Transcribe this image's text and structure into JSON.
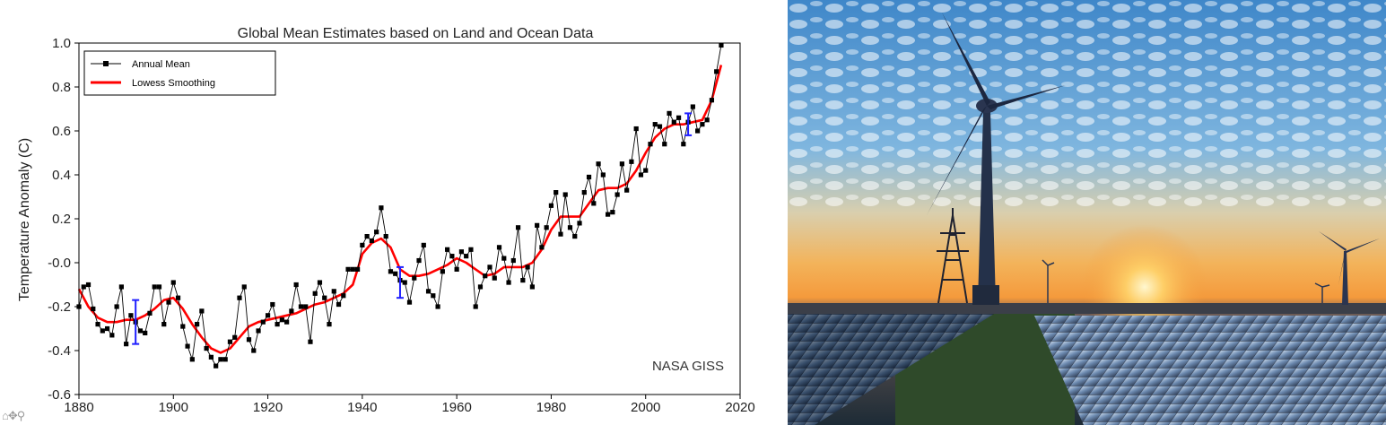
{
  "chart_data": {
    "type": "line",
    "title": "Global Mean Estimates based on Land and Ocean Data",
    "ylabel": "Temperature Anomaly (C)",
    "xlim": [
      1880,
      2020
    ],
    "ylim": [
      -0.6,
      1.0
    ],
    "xticks": [
      1880,
      1900,
      1920,
      1940,
      1960,
      1980,
      2000,
      2020
    ],
    "yticks": [
      {
        "value": 1.0,
        "label": "1.0"
      },
      {
        "value": 0.8,
        "label": "0.8"
      },
      {
        "value": 0.6,
        "label": "0.6"
      },
      {
        "value": 0.4,
        "label": "0.4"
      },
      {
        "value": 0.2,
        "label": "0.2"
      },
      {
        "value": 0.0,
        "label": "-0.0"
      },
      {
        "value": -0.2,
        "label": "-0.2"
      },
      {
        "value": -0.4,
        "label": "-0.4"
      },
      {
        "value": -0.6,
        "label": "-0.6"
      }
    ],
    "legend_position": "top-left",
    "annotation": "NASA GISS",
    "series": [
      {
        "name": "Annual Mean",
        "color": "#000000",
        "marker": "square",
        "x": [
          1880,
          1881,
          1882,
          1883,
          1884,
          1885,
          1886,
          1887,
          1888,
          1889,
          1890,
          1891,
          1892,
          1893,
          1894,
          1895,
          1896,
          1897,
          1898,
          1899,
          1900,
          1901,
          1902,
          1903,
          1904,
          1905,
          1906,
          1907,
          1908,
          1909,
          1910,
          1911,
          1912,
          1913,
          1914,
          1915,
          1916,
          1917,
          1918,
          1919,
          1920,
          1921,
          1922,
          1923,
          1924,
          1925,
          1926,
          1927,
          1928,
          1929,
          1930,
          1931,
          1932,
          1933,
          1934,
          1935,
          1936,
          1937,
          1938,
          1939,
          1940,
          1941,
          1942,
          1943,
          1944,
          1945,
          1946,
          1947,
          1948,
          1949,
          1950,
          1951,
          1952,
          1953,
          1954,
          1955,
          1956,
          1957,
          1958,
          1959,
          1960,
          1961,
          1962,
          1963,
          1964,
          1965,
          1966,
          1967,
          1968,
          1969,
          1970,
          1971,
          1972,
          1973,
          1974,
          1975,
          1976,
          1977,
          1978,
          1979,
          1980,
          1981,
          1982,
          1983,
          1984,
          1985,
          1986,
          1987,
          1988,
          1989,
          1990,
          1991,
          1992,
          1993,
          1994,
          1995,
          1996,
          1997,
          1998,
          1999,
          2000,
          2001,
          2002,
          2003,
          2004,
          2005,
          2006,
          2007,
          2008,
          2009,
          2010,
          2011,
          2012,
          2013,
          2014,
          2015,
          2016
        ],
        "values": [
          -0.2,
          -0.11,
          -0.1,
          -0.21,
          -0.28,
          -0.31,
          -0.3,
          -0.33,
          -0.2,
          -0.11,
          -0.37,
          -0.24,
          -0.27,
          -0.31,
          -0.32,
          -0.23,
          -0.11,
          -0.11,
          -0.28,
          -0.18,
          -0.09,
          -0.16,
          -0.29,
          -0.38,
          -0.44,
          -0.28,
          -0.22,
          -0.39,
          -0.43,
          -0.47,
          -0.44,
          -0.44,
          -0.36,
          -0.34,
          -0.16,
          -0.11,
          -0.35,
          -0.4,
          -0.31,
          -0.27,
          -0.24,
          -0.19,
          -0.28,
          -0.26,
          -0.27,
          -0.22,
          -0.1,
          -0.2,
          -0.2,
          -0.36,
          -0.14,
          -0.09,
          -0.16,
          -0.28,
          -0.13,
          -0.19,
          -0.15,
          -0.03,
          -0.03,
          -0.03,
          0.08,
          0.12,
          0.1,
          0.14,
          0.25,
          0.12,
          -0.04,
          -0.05,
          -0.08,
          -0.09,
          -0.18,
          -0.07,
          0.01,
          0.08,
          -0.13,
          -0.15,
          -0.2,
          -0.04,
          0.06,
          0.03,
          -0.03,
          0.05,
          0.03,
          0.06,
          -0.2,
          -0.11,
          -0.06,
          -0.02,
          -0.07,
          0.07,
          0.02,
          -0.09,
          0.01,
          0.16,
          -0.08,
          -0.02,
          -0.11,
          0.17,
          0.07,
          0.16,
          0.26,
          0.32,
          0.13,
          0.31,
          0.16,
          0.12,
          0.18,
          0.32,
          0.39,
          0.27,
          0.45,
          0.4,
          0.22,
          0.23,
          0.31,
          0.45,
          0.33,
          0.46,
          0.61,
          0.4,
          0.42,
          0.54,
          0.63,
          0.62,
          0.54,
          0.68,
          0.64,
          0.66,
          0.54,
          0.64,
          0.71,
          0.6,
          0.63,
          0.65,
          0.74,
          0.87,
          0.99
        ]
      },
      {
        "name": "Lowess Smoothing",
        "color": "#ff0000",
        "x": [
          1880,
          1882,
          1884,
          1886,
          1888,
          1890,
          1892,
          1894,
          1896,
          1898,
          1900,
          1902,
          1904,
          1906,
          1908,
          1910,
          1912,
          1914,
          1916,
          1918,
          1920,
          1922,
          1924,
          1926,
          1928,
          1930,
          1932,
          1934,
          1936,
          1938,
          1940,
          1942,
          1944,
          1946,
          1948,
          1950,
          1952,
          1954,
          1956,
          1958,
          1960,
          1962,
          1964,
          1966,
          1968,
          1970,
          1972,
          1974,
          1976,
          1978,
          1980,
          1982,
          1984,
          1986,
          1988,
          1990,
          1992,
          1994,
          1996,
          1998,
          2000,
          2002,
          2004,
          2006,
          2008,
          2010,
          2012,
          2014,
          2016
        ],
        "values": [
          -0.12,
          -0.2,
          -0.25,
          -0.27,
          -0.27,
          -0.26,
          -0.26,
          -0.24,
          -0.21,
          -0.17,
          -0.16,
          -0.21,
          -0.28,
          -0.34,
          -0.39,
          -0.41,
          -0.39,
          -0.34,
          -0.29,
          -0.27,
          -0.26,
          -0.25,
          -0.24,
          -0.23,
          -0.21,
          -0.19,
          -0.18,
          -0.16,
          -0.14,
          -0.1,
          0.04,
          0.09,
          0.11,
          0.07,
          -0.03,
          -0.06,
          -0.06,
          -0.05,
          -0.03,
          -0.01,
          0.02,
          0.0,
          -0.03,
          -0.06,
          -0.05,
          -0.02,
          -0.02,
          -0.02,
          0.0,
          0.06,
          0.15,
          0.21,
          0.21,
          0.21,
          0.27,
          0.33,
          0.34,
          0.34,
          0.36,
          0.42,
          0.5,
          0.57,
          0.61,
          0.63,
          0.63,
          0.64,
          0.65,
          0.74,
          0.9
        ]
      }
    ],
    "uncertainty_bars": {
      "color": "#1f1fff",
      "items": [
        {
          "x": 1892,
          "low": -0.37,
          "high": -0.17
        },
        {
          "x": 1948,
          "low": -0.16,
          "high": -0.02
        },
        {
          "x": 2009,
          "low": 0.58,
          "high": 0.68
        }
      ]
    }
  },
  "toolbar": {
    "icons_text": "⌂✥⚲"
  },
  "photo": {
    "scene": "Wind turbines and solar panel field at sunset"
  }
}
